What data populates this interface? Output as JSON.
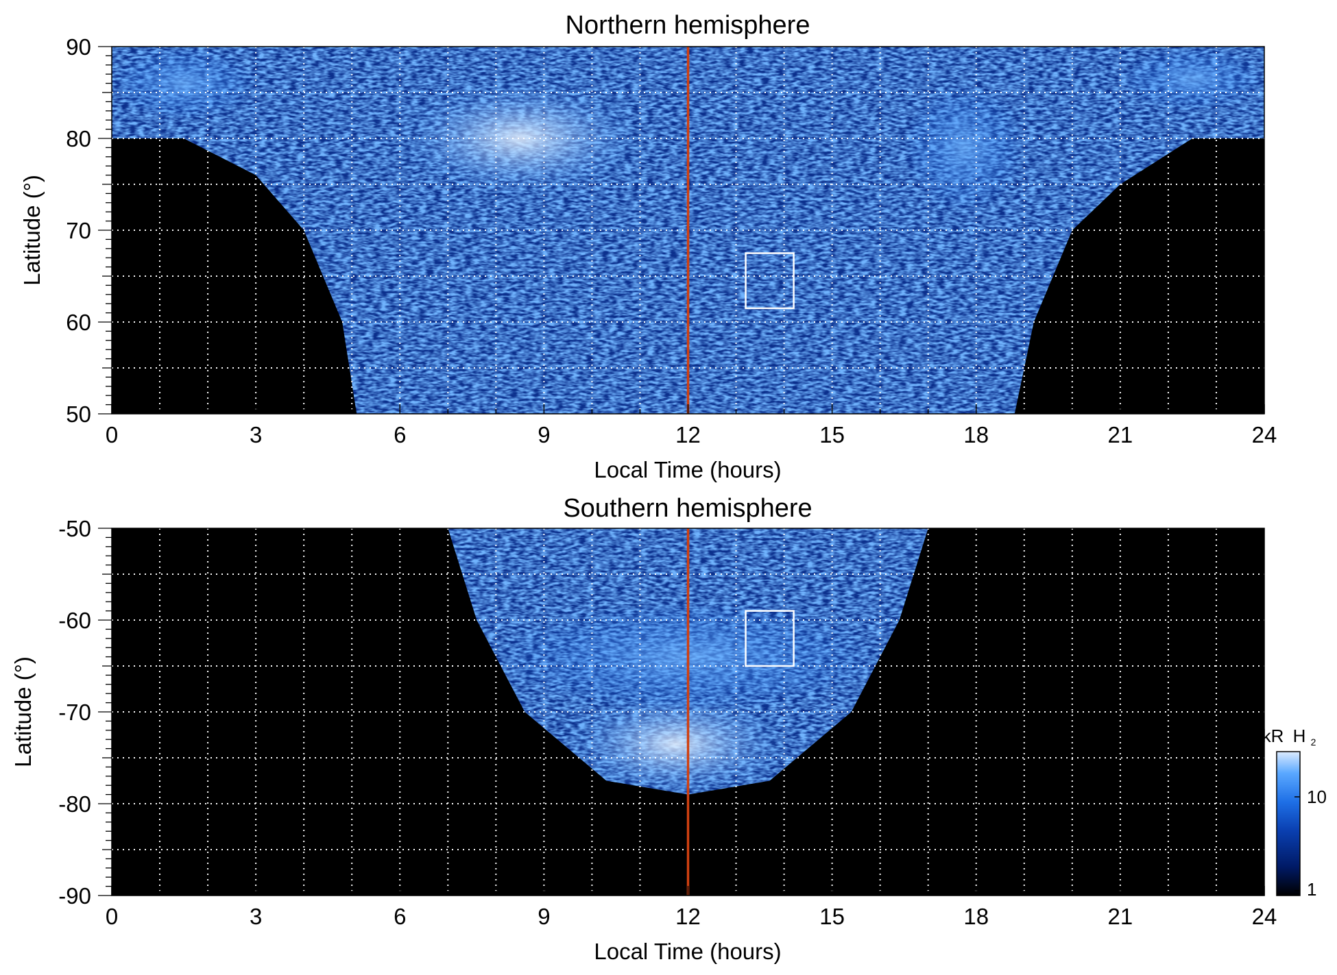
{
  "chart_data": [
    {
      "type": "heatmap",
      "title": "Northern hemisphere",
      "xlabel": "Local Time (hours)",
      "ylabel": "Latitude (°)",
      "xlim": [
        0,
        24
      ],
      "ylim": [
        50,
        90
      ],
      "x_ticks": [
        0,
        3,
        6,
        9,
        12,
        15,
        18,
        21,
        24
      ],
      "x_tick_labels": [
        "0",
        "3",
        "6",
        "9",
        "12",
        "15",
        "18",
        "21",
        "24"
      ],
      "y_ticks": [
        90,
        80,
        70,
        60,
        50
      ],
      "y_tick_labels": [
        "90",
        "80",
        "70",
        "60",
        "50"
      ],
      "grid": true,
      "grid_style": "dotted white",
      "vertical_line": {
        "x": 12,
        "color": "#d04010"
      },
      "box": {
        "x": [
          13.2,
          14.2
        ],
        "y": [
          61.5,
          67.5
        ],
        "color": "#ffffff"
      },
      "background": "#000000",
      "coverage_lower_edge": [
        {
          "x": 0,
          "y": 80
        },
        {
          "x": 1.5,
          "y": 80
        },
        {
          "x": 3,
          "y": 76
        },
        {
          "x": 4,
          "y": 70
        },
        {
          "x": 4.8,
          "y": 60
        },
        {
          "x": 5.1,
          "y": 50
        },
        {
          "x": 18.8,
          "y": 50
        },
        {
          "x": 19.2,
          "y": 60
        },
        {
          "x": 20,
          "y": 70
        },
        {
          "x": 21,
          "y": 75
        },
        {
          "x": 22.5,
          "y": 80
        },
        {
          "x": 24,
          "y": 80
        }
      ],
      "bright_regions": [
        {
          "x": [
            6,
            11
          ],
          "y": [
            74,
            86
          ],
          "level": "bright"
        },
        {
          "x": [
            16.5,
            19
          ],
          "y": [
            72,
            86
          ],
          "level": "moderate"
        },
        {
          "x": [
            0,
            3
          ],
          "y": [
            82,
            90
          ],
          "level": "moderate"
        },
        {
          "x": [
            21,
            24
          ],
          "y": [
            83,
            90
          ],
          "level": "moderate"
        }
      ]
    },
    {
      "type": "heatmap",
      "title": "Southern hemisphere",
      "xlabel": "Local Time (hours)",
      "ylabel": "Latitude (°)",
      "xlim": [
        0,
        24
      ],
      "ylim": [
        -90,
        -50
      ],
      "x_ticks": [
        0,
        3,
        6,
        9,
        12,
        15,
        18,
        21,
        24
      ],
      "x_tick_labels": [
        "0",
        "3",
        "6",
        "9",
        "12",
        "15",
        "18",
        "21",
        "24"
      ],
      "y_ticks": [
        -50,
        -60,
        -70,
        -80,
        -90
      ],
      "y_tick_labels": [
        "-50",
        "-60",
        "-70",
        "-80",
        "-90"
      ],
      "grid": true,
      "grid_style": "dotted white",
      "vertical_line": {
        "x": 12,
        "color": "#d04010"
      },
      "box": {
        "x": [
          13.2,
          14.2
        ],
        "y": [
          -65,
          -59
        ],
        "color": "#ffffff"
      },
      "background": "#000000",
      "coverage_outer_edge": [
        {
          "x": 7,
          "y": -50
        },
        {
          "x": 7.6,
          "y": -60
        },
        {
          "x": 8.6,
          "y": -70
        },
        {
          "x": 10.3,
          "y": -77.5
        },
        {
          "x": 12,
          "y": -79
        },
        {
          "x": 13.7,
          "y": -77.5
        },
        {
          "x": 15.4,
          "y": -70
        },
        {
          "x": 16.4,
          "y": -60
        },
        {
          "x": 17,
          "y": -50
        }
      ],
      "bright_regions": [
        {
          "x": [
            9.5,
            14
          ],
          "y": [
            -79,
            -68
          ],
          "level": "bright"
        },
        {
          "x": [
            8,
            16
          ],
          "y": [
            -70,
            -58
          ],
          "level": "moderate"
        }
      ]
    }
  ],
  "colorbar": {
    "label_prefix": "kR",
    "label_main": "H",
    "label_sub": "2",
    "scale": "log",
    "range": [
      1,
      30
    ],
    "ticks": [
      "10",
      "1"
    ],
    "colors": [
      "#000000",
      "#001a66",
      "#0a3fb0",
      "#1e6fe6",
      "#5aa8ff",
      "#dcebff"
    ]
  }
}
